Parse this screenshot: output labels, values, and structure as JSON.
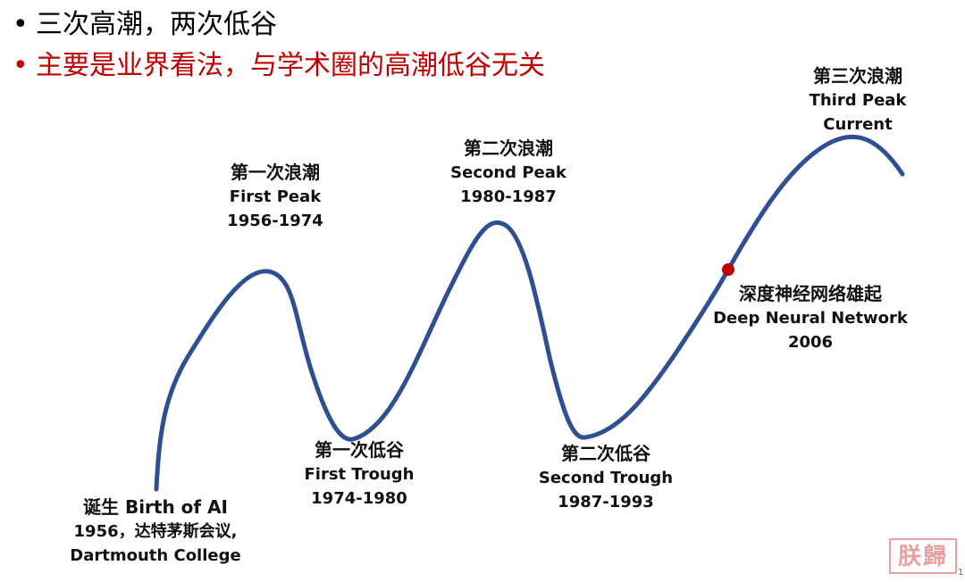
{
  "bullets": [
    {
      "text": "三次高潮，两次低谷",
      "color": "#000000"
    },
    {
      "text": "主要是业界看法，与学术圈的高潮低谷无关",
      "color": "#c00000"
    }
  ],
  "curve": {
    "color": "#2e4f91",
    "marker_color": "#c00000"
  },
  "milestones": [
    {
      "zh": "诞生 Birth of AI",
      "en": "1956，达特茅斯会议,",
      "period": "Dartmouth College"
    },
    {
      "zh": "第一次浪潮",
      "en": "First Peak",
      "period": "1956-1974"
    },
    {
      "zh": "第一次低谷",
      "en": "First Trough",
      "period": "1974-1980"
    },
    {
      "zh": "第二次浪潮",
      "en": "Second Peak",
      "period": "1980-1987"
    },
    {
      "zh": "第二次低谷",
      "en": "Second Trough",
      "period": "1987-1993"
    },
    {
      "zh": "深度神经网络雄起",
      "en": "Deep Neural Network",
      "period": "2006"
    },
    {
      "zh": "第三次浪潮",
      "en": "Third Peak",
      "period": "Current"
    }
  ],
  "watermark": "朕歸",
  "page_number": "1"
}
